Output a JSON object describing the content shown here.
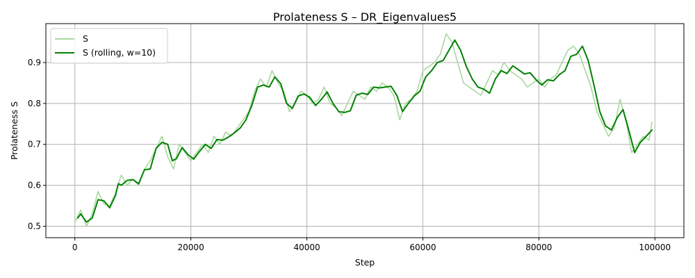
{
  "chart_data": {
    "type": "line",
    "title": "Prolateness S – DR_Eigenvalues5",
    "xlabel": "Step",
    "ylabel": "Prolateness S",
    "xlim": [
      -5000,
      105000
    ],
    "ylim": [
      0.472,
      0.995
    ],
    "xticks": [
      0,
      20000,
      40000,
      60000,
      80000,
      100000
    ],
    "xtick_labels": [
      "0",
      "20000",
      "40000",
      "60000",
      "80000",
      "100000"
    ],
    "yticks": [
      0.5,
      0.6,
      0.7,
      0.8,
      0.9
    ],
    "ytick_labels": [
      "0.5",
      "0.6",
      "0.7",
      "0.8",
      "0.9"
    ],
    "grid": true,
    "legend_position": "upper-left",
    "colors": {
      "raw": "#a8d8a0",
      "smooth": "#008000",
      "grid": "#b0b0b0"
    },
    "series": [
      {
        "name": "S",
        "style": "raw",
        "x": [
          0,
          1000,
          2000,
          3000,
          4000,
          5000,
          6000,
          7000,
          8000,
          9000,
          10000,
          11000,
          12000,
          13000,
          14000,
          15000,
          16000,
          17000,
          18000,
          19000,
          20000,
          21000,
          22000,
          23000,
          24000,
          25000,
          26000,
          27000,
          28000,
          29000,
          30000,
          31000,
          32000,
          33000,
          34000,
          35000,
          36000,
          37000,
          38000,
          39000,
          40000,
          41000,
          42000,
          43000,
          44000,
          45000,
          46000,
          47000,
          48000,
          49000,
          50000,
          51000,
          52000,
          53000,
          54000,
          55000,
          56000,
          57000,
          58000,
          59000,
          60000,
          61000,
          62000,
          63000,
          64000,
          65000,
          66000,
          67000,
          68000,
          69000,
          70000,
          71000,
          72000,
          73000,
          74000,
          75000,
          76000,
          77000,
          78000,
          79000,
          80000,
          81000,
          82000,
          83000,
          84000,
          85000,
          86000,
          87000,
          88000,
          89000,
          90000,
          91000,
          92000,
          93000,
          94000,
          95000,
          96000,
          97000,
          98000,
          99000,
          99500
        ],
        "y": [
          0.51,
          0.54,
          0.5,
          0.53,
          0.585,
          0.555,
          0.55,
          0.58,
          0.625,
          0.6,
          0.615,
          0.6,
          0.64,
          0.66,
          0.69,
          0.72,
          0.67,
          0.64,
          0.7,
          0.68,
          0.66,
          0.68,
          0.7,
          0.68,
          0.72,
          0.7,
          0.73,
          0.72,
          0.74,
          0.76,
          0.78,
          0.83,
          0.86,
          0.84,
          0.88,
          0.85,
          0.83,
          0.78,
          0.8,
          0.83,
          0.82,
          0.8,
          0.81,
          0.84,
          0.8,
          0.79,
          0.77,
          0.8,
          0.83,
          0.82,
          0.81,
          0.84,
          0.83,
          0.85,
          0.84,
          0.82,
          0.76,
          0.8,
          0.81,
          0.83,
          0.88,
          0.89,
          0.9,
          0.92,
          0.97,
          0.95,
          0.9,
          0.85,
          0.84,
          0.83,
          0.82,
          0.85,
          0.88,
          0.87,
          0.9,
          0.88,
          0.87,
          0.86,
          0.84,
          0.85,
          0.86,
          0.84,
          0.86,
          0.87,
          0.9,
          0.93,
          0.94,
          0.92,
          0.88,
          0.84,
          0.78,
          0.75,
          0.72,
          0.74,
          0.81,
          0.76,
          0.68,
          0.7,
          0.72,
          0.71,
          0.755
        ]
      },
      {
        "name": "S (rolling, w=10)",
        "style": "smooth",
        "x": [
          500,
          1000,
          2000,
          3000,
          4000,
          5000,
          6000,
          7000,
          7500,
          8000,
          9000,
          10000,
          11000,
          12000,
          13000,
          14000,
          15000,
          16000,
          16800,
          17500,
          18500,
          19500,
          20500,
          21500,
          22500,
          23500,
          24500,
          25500,
          26500,
          27500,
          28500,
          29500,
          30500,
          31500,
          32500,
          33500,
          34500,
          35500,
          36500,
          37500,
          38500,
          39500,
          40500,
          41500,
          42500,
          43500,
          44500,
          45500,
          46500,
          47500,
          48500,
          49500,
          50500,
          51500,
          52500,
          53500,
          54500,
          55500,
          56500,
          57500,
          58500,
          59500,
          60500,
          61500,
          62500,
          63500,
          64500,
          65500,
          66500,
          67500,
          68500,
          69500,
          70500,
          71500,
          72500,
          73500,
          74500,
          75500,
          76500,
          77500,
          78500,
          79500,
          80500,
          81500,
          82500,
          83500,
          84500,
          85500,
          86500,
          87500,
          88500,
          89500,
          90500,
          91500,
          92500,
          93500,
          94500,
          95500,
          96500,
          97500,
          98500,
          99500
        ],
        "y": [
          0.52,
          0.53,
          0.51,
          0.52,
          0.565,
          0.562,
          0.545,
          0.575,
          0.604,
          0.6,
          0.612,
          0.614,
          0.604,
          0.638,
          0.64,
          0.69,
          0.705,
          0.7,
          0.66,
          0.665,
          0.692,
          0.675,
          0.664,
          0.683,
          0.7,
          0.69,
          0.712,
          0.71,
          0.718,
          0.728,
          0.74,
          0.76,
          0.795,
          0.84,
          0.845,
          0.84,
          0.865,
          0.848,
          0.8,
          0.788,
          0.818,
          0.823,
          0.815,
          0.795,
          0.81,
          0.828,
          0.8,
          0.78,
          0.778,
          0.782,
          0.82,
          0.825,
          0.822,
          0.84,
          0.838,
          0.84,
          0.842,
          0.82,
          0.78,
          0.8,
          0.818,
          0.83,
          0.865,
          0.88,
          0.9,
          0.905,
          0.93,
          0.955,
          0.93,
          0.89,
          0.86,
          0.84,
          0.835,
          0.825,
          0.86,
          0.88,
          0.873,
          0.892,
          0.882,
          0.872,
          0.875,
          0.858,
          0.845,
          0.858,
          0.855,
          0.87,
          0.88,
          0.915,
          0.92,
          0.94,
          0.905,
          0.845,
          0.78,
          0.745,
          0.735,
          0.765,
          0.785,
          0.735,
          0.68,
          0.705,
          0.72,
          0.735
        ]
      }
    ]
  }
}
